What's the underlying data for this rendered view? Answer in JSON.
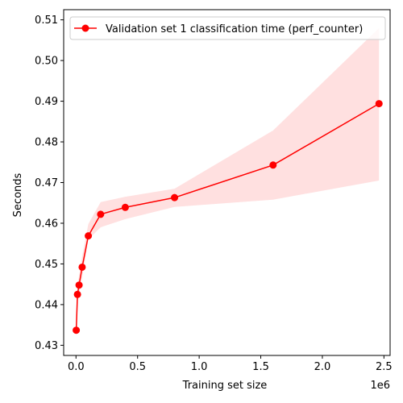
{
  "chart_data": {
    "type": "line",
    "xlabel": "Training set size",
    "ylabel": "Seconds",
    "x_offset_label": "1e6",
    "xlim": [
      -100000,
      2550000
    ],
    "ylim": [
      0.4275,
      0.5125
    ],
    "x_ticks": [
      0,
      500000,
      1000000,
      1500000,
      2000000,
      2500000
    ],
    "x_tick_labels": [
      "0.0",
      "0.5",
      "1.0",
      "1.5",
      "2.0",
      "2.5"
    ],
    "y_ticks": [
      0.43,
      0.44,
      0.45,
      0.46,
      0.47,
      0.48,
      0.49,
      0.5,
      0.51
    ],
    "y_tick_labels": [
      "0.43",
      "0.44",
      "0.45",
      "0.46",
      "0.47",
      "0.48",
      "0.49",
      "0.50",
      "0.51"
    ],
    "legend_position": "top-right",
    "grid": false,
    "series": [
      {
        "name": "Validation set 1 classification time (perf_counter)",
        "color": "#ff0000",
        "band_color": "#ff0000",
        "x": [
          2000,
          12000,
          25000,
          50000,
          100000,
          200000,
          400000,
          800000,
          1600000,
          2460000
        ],
        "y": [
          0.4337,
          0.4425,
          0.4448,
          0.4492,
          0.4569,
          0.4622,
          0.4639,
          0.4663,
          0.4743,
          0.4894
        ],
        "upper": [
          0.4352,
          0.4445,
          0.4472,
          0.4518,
          0.4598,
          0.4652,
          0.4665,
          0.4685,
          0.4828,
          0.508
        ],
        "lower": [
          0.4322,
          0.4405,
          0.4424,
          0.4466,
          0.456,
          0.459,
          0.461,
          0.464,
          0.4658,
          0.4705
        ]
      }
    ]
  }
}
